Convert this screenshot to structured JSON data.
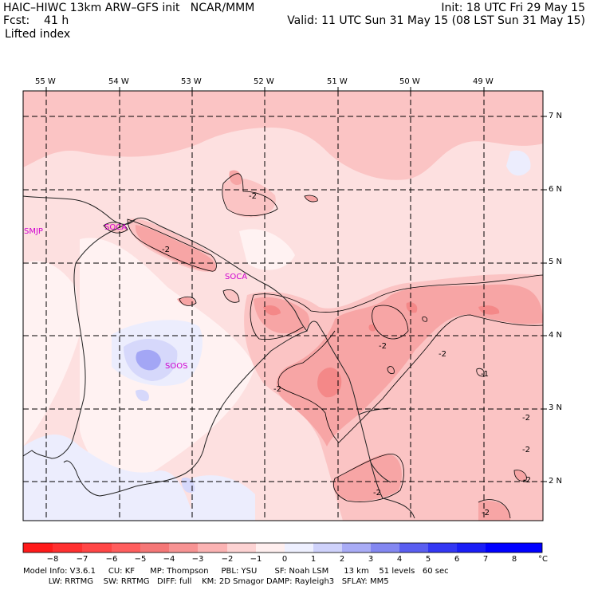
{
  "header": {
    "model_title": "HAIC–HIWC 13km ARW–GFS init   NCAR/MMM",
    "fcst_label": "Fcst:    41 h",
    "field_name": "Lifted index",
    "init_label": "Init: 18 UTC Fri 29 May 15",
    "valid_label": "Valid: 11 UTC Sun 31 May 15 (08 LST Sun 31 May 15)"
  },
  "map": {
    "lon_labels": [
      "55 W",
      "54 W",
      "53 W",
      "52 W",
      "51 W",
      "50 W",
      "49 W"
    ],
    "lat_labels": [
      "7 N",
      "6 N",
      "5 N",
      "4 N",
      "3 N",
      "2 N"
    ],
    "stations": [
      "SMJP",
      "SOCA",
      "SOCA",
      "SOOS"
    ],
    "contour_labels": [
      "-2",
      "-2",
      "-2",
      "-2",
      "-2",
      "-2",
      "-2",
      "-2",
      "-2",
      "-2",
      "-1"
    ],
    "colors": {
      "light_pink": "#fde0e0",
      "pink": "#fbc4c4",
      "salmon": "#f7a5a5",
      "red_light": "#f48888",
      "very_light_blue": "#ecedfd",
      "light_blue": "#d6d8fb",
      "blue": "#a3a6f5",
      "station": "#d000d0"
    }
  },
  "colorbar": {
    "tick_labels": [
      "−8",
      "−7",
      "−6",
      "−5",
      "−4",
      "−3",
      "−2",
      "−1",
      "0",
      "1",
      "2",
      "3",
      "4",
      "5",
      "6",
      "7",
      "8"
    ],
    "unit": "°C",
    "colors": [
      "#ff1a1a",
      "#ff3030",
      "#ff4646",
      "#ff5e5e",
      "#f57777",
      "#f79393",
      "#fbb3b3",
      "#fdd3d3",
      "#ffefef",
      "#eef0ff",
      "#cfd2fb",
      "#a9acf6",
      "#8387f1",
      "#5a5ef0",
      "#3337f3",
      "#1a1ef6",
      "#0000ff"
    ]
  },
  "footer": {
    "line1": "Model Info: V3.6.1     CU: KF      MP: Thompson     PBL: YSU       SF: Noah LSM      13 km    51 levels   60 sec",
    "line2": "          LW: RRTMG    SW: RRTMG   DIFF: full    KM: 2D Smagor DAMP: Rayleigh3   SFLAY: MM5"
  }
}
